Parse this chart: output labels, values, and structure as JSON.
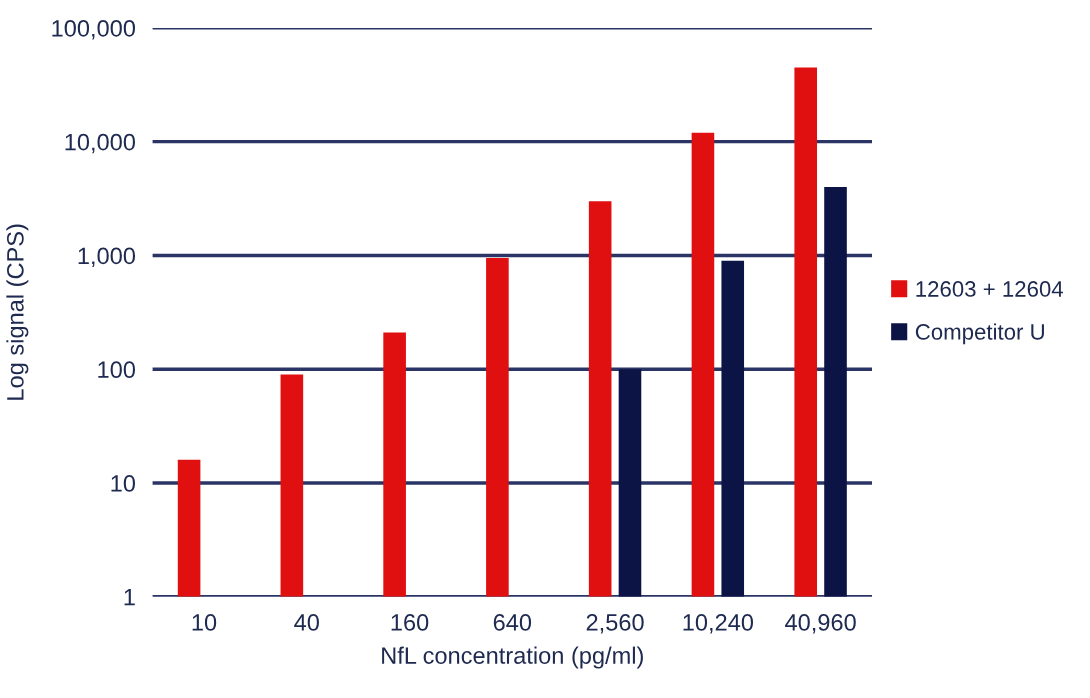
{
  "chart_data": {
    "type": "bar",
    "xlabel": "NfL concentration (pg/ml)",
    "ylabel": "Log signal (CPS)",
    "categories": [
      "10",
      "40",
      "160",
      "640",
      "2,560",
      "10,240",
      "40,960"
    ],
    "series": [
      {
        "name": "12603 + 12604",
        "color": "#e01010",
        "values": [
          16,
          90,
          210,
          950,
          3000,
          12000,
          45000
        ]
      },
      {
        "name": "Competitor U",
        "color": "#0c1445",
        "values": [
          null,
          null,
          null,
          null,
          100,
          900,
          4000
        ]
      }
    ],
    "log": "y",
    "ylim": [
      1,
      100000
    ],
    "yticks": [
      1,
      10,
      {
        "value": 100,
        "label": "100"
      },
      {
        "value": 1000,
        "label": "1,000"
      },
      {
        "value": 10000,
        "label": "10,000"
      },
      {
        "value": 100000,
        "label": "100,000"
      }
    ],
    "grid": "y",
    "legend": "right"
  }
}
